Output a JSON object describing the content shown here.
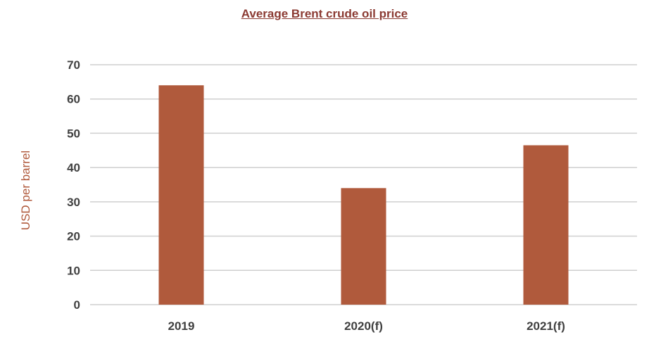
{
  "chart_data": {
    "type": "bar",
    "title": "Average Brent crude oil price",
    "xlabel": "",
    "ylabel": "USD per barrel",
    "categories": [
      "2019",
      "2020(f)",
      "2021(f)"
    ],
    "values": [
      64,
      34,
      46.5
    ],
    "ylim": [
      0,
      70
    ],
    "yticks": [
      0,
      10,
      20,
      30,
      40,
      50,
      60,
      70
    ],
    "grid": true,
    "legend": "none",
    "colors": {
      "bar": "#b05a3c",
      "title": "#8b3a32",
      "ylabel": "#b05a3c",
      "grid": "#cfcfcf",
      "tick_text": "#404040"
    }
  }
}
